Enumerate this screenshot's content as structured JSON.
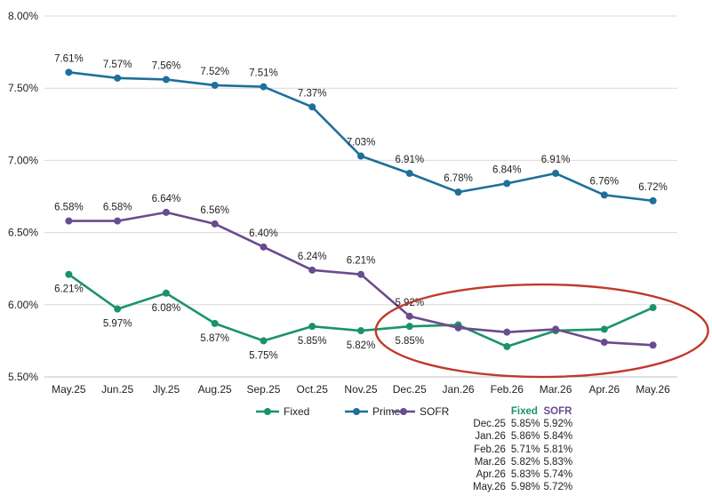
{
  "chart_data": {
    "type": "line",
    "title": "",
    "xlabel": "",
    "ylabel": "",
    "categories": [
      "May.25",
      "Jun.25",
      "Jly.25",
      "Aug.25",
      "Sep.25",
      "Oct.25",
      "Nov.25",
      "Dec.25",
      "Jan.26",
      "Feb.26",
      "Mar.26",
      "Apr.26",
      "May.26"
    ],
    "ylim": [
      5.5,
      8.0
    ],
    "yticks": [
      5.5,
      6.0,
      6.5,
      7.0,
      7.5,
      8.0
    ],
    "ytick_labels": [
      "5.50%",
      "6.00%",
      "6.50%",
      "7.00%",
      "7.50%",
      "8.00%"
    ],
    "grid": true,
    "legend_position": "bottom",
    "series": [
      {
        "name": "Fixed",
        "color": "#1a9467",
        "values": [
          6.21,
          5.97,
          6.08,
          5.87,
          5.75,
          5.85,
          5.82,
          5.85,
          5.86,
          5.71,
          5.82,
          5.83,
          5.98
        ],
        "labels": [
          "6.21%",
          "5.97%",
          "6.08%",
          "5.87%",
          "5.75%",
          "5.85%",
          "5.82%",
          "5.85%",
          "",
          "",
          "",
          "",
          ""
        ],
        "label_position": "below"
      },
      {
        "name": "Prime",
        "color": "#1f6f9b",
        "values": [
          7.61,
          7.57,
          7.56,
          7.52,
          7.51,
          7.37,
          7.03,
          6.91,
          6.78,
          6.84,
          6.91,
          6.76,
          6.72
        ],
        "labels": [
          "7.61%",
          "7.57%",
          "7.56%",
          "7.52%",
          "7.51%",
          "7.37%",
          "7.03%",
          "6.91%",
          "6.78%",
          "6.84%",
          "6.91%",
          "6.76%",
          "6.72%"
        ],
        "label_position": "above"
      },
      {
        "name": "SOFR",
        "color": "#6b4b8f",
        "values": [
          6.58,
          6.58,
          6.64,
          6.56,
          6.4,
          6.24,
          6.21,
          5.92,
          5.84,
          5.81,
          5.83,
          5.74,
          5.72
        ],
        "labels": [
          "6.58%",
          "6.58%",
          "6.64%",
          "6.56%",
          "6.40%",
          "6.24%",
          "6.21%",
          "5.92%",
          "",
          "",
          "",
          "",
          ""
        ],
        "label_position": "above"
      }
    ],
    "annotation": {
      "type": "ellipse",
      "color": "#c0392b",
      "from_category": "Dec.25",
      "to_category": "May.26",
      "center_value": 5.9
    }
  },
  "side_table": {
    "headers": [
      "",
      "Fixed",
      "SOFR"
    ],
    "header_colors": [
      "",
      "#1a9467",
      "#6b4b8f"
    ],
    "rows": [
      {
        "month": "Dec.25",
        "fixed": "5.85%",
        "sofr": "5.92%"
      },
      {
        "month": "Jan.26",
        "fixed": "5.86%",
        "sofr": "5.84%"
      },
      {
        "month": "Feb.26",
        "fixed": "5.71%",
        "sofr": "5.81%"
      },
      {
        "month": "Mar.26",
        "fixed": "5.82%",
        "sofr": "5.83%"
      },
      {
        "month": "Apr.26",
        "fixed": "5.83%",
        "sofr": "5.74%"
      },
      {
        "month": "May.26",
        "fixed": "5.98%",
        "sofr": "5.72%"
      }
    ]
  }
}
